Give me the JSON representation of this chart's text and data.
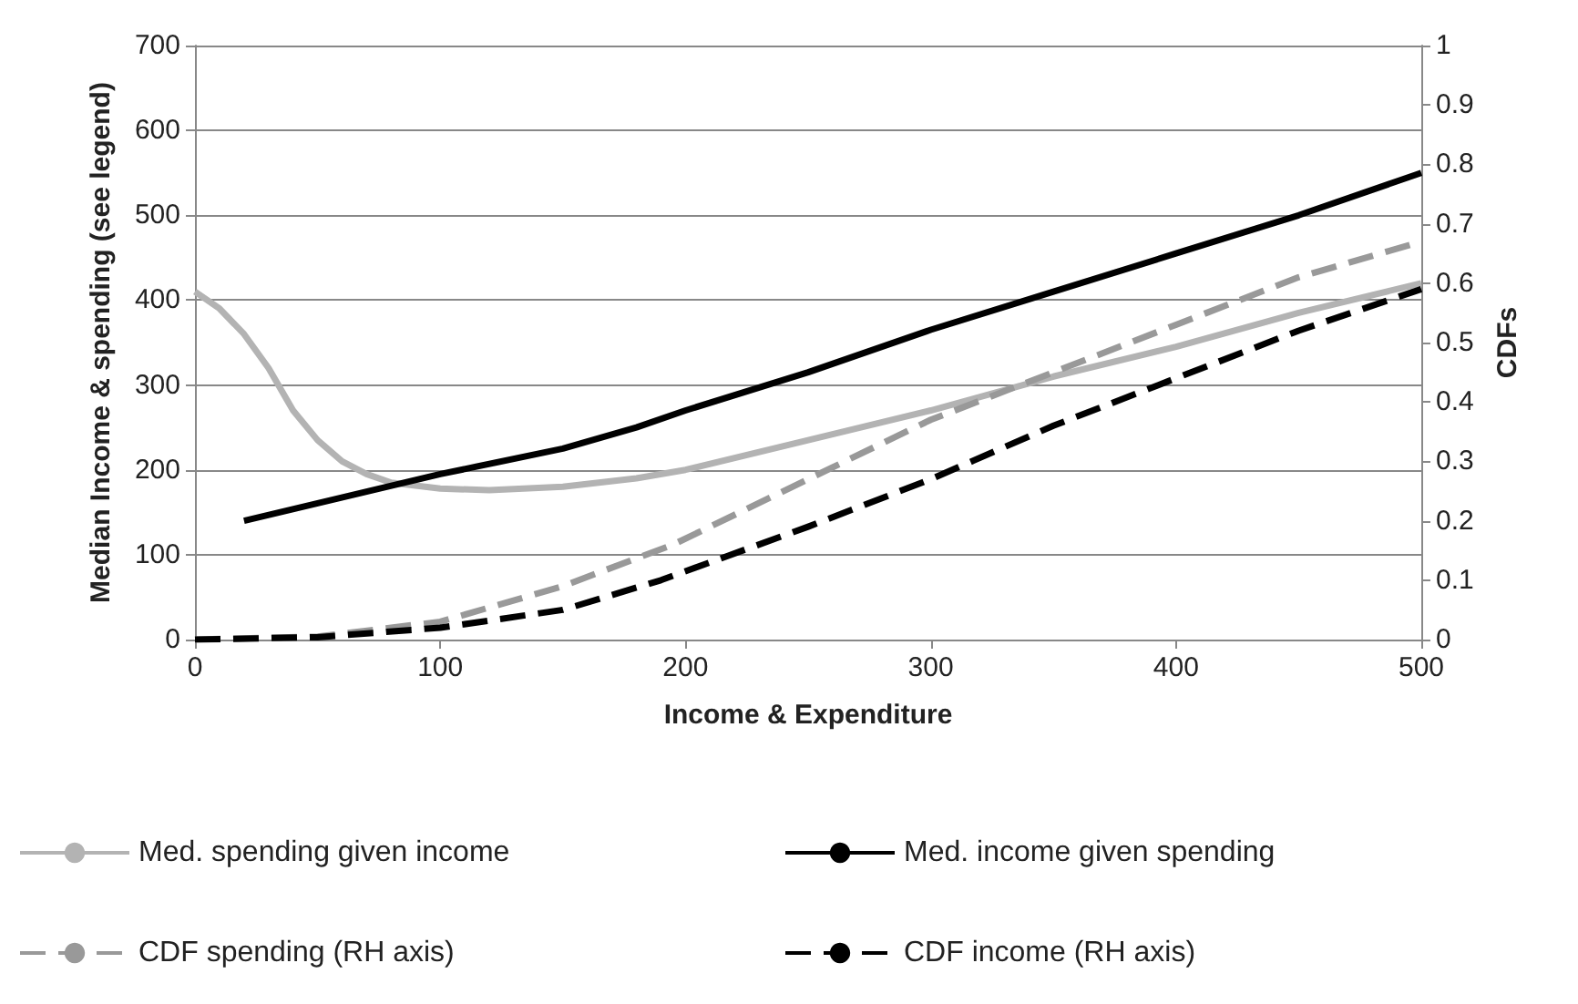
{
  "chart_data": {
    "type": "line",
    "xlabel": "Income & Expenditure",
    "ylabel": "Median Income & spending (see legend)",
    "y2label": "CDFs",
    "xlim": [
      0,
      500
    ],
    "xticks": [
      0,
      100,
      200,
      300,
      400,
      500
    ],
    "ylim": [
      0,
      700
    ],
    "yticks": [
      0,
      100,
      200,
      300,
      400,
      500,
      600,
      700
    ],
    "y2lim": [
      0,
      1
    ],
    "y2ticks": [
      0,
      0.1,
      0.2,
      0.3,
      0.4,
      0.5,
      0.6,
      0.7,
      0.8,
      0.9,
      1
    ],
    "grid": "y",
    "legend": "bottom",
    "marker": "none",
    "series": [
      {
        "name": "Med. spending given income",
        "color": "#b3b3b3",
        "line_style": "solid",
        "x": [
          0,
          10,
          20,
          30,
          40,
          50,
          60,
          70,
          80,
          100,
          120,
          150,
          180,
          200,
          250,
          300,
          350,
          400,
          450,
          500
        ],
        "values": [
          410,
          390,
          360,
          320,
          270,
          235,
          210,
          195,
          185,
          178,
          176,
          180,
          190,
          200,
          235,
          270,
          310,
          345,
          385,
          420
        ]
      },
      {
        "name": "Med. income given spending",
        "color": "#000000",
        "line_style": "solid",
        "x": [
          20,
          100,
          150,
          180,
          200,
          250,
          300,
          350,
          400,
          450,
          500
        ],
        "values": [
          140,
          195,
          225,
          250,
          270,
          315,
          365,
          410,
          455,
          500,
          550
        ]
      },
      {
        "name": "CDF spending (RH axis)",
        "color": "#999999",
        "line_style": "dashed",
        "axis": "y2",
        "x": [
          0,
          50,
          100,
          150,
          195,
          250,
          300,
          350,
          400,
          450,
          500
        ],
        "values": [
          0,
          0.005,
          0.03,
          0.09,
          0.16,
          0.27,
          0.37,
          0.45,
          0.53,
          0.61,
          0.67
        ]
      },
      {
        "name": "CDF income (RH axis)",
        "color": "#000000",
        "line_style": "dashed",
        "axis": "y2",
        "x": [
          0,
          50,
          100,
          150,
          190,
          250,
          300,
          350,
          400,
          450,
          500
        ],
        "values": [
          0,
          0.004,
          0.02,
          0.05,
          0.1,
          0.19,
          0.27,
          0.36,
          0.44,
          0.52,
          0.59
        ]
      }
    ]
  }
}
